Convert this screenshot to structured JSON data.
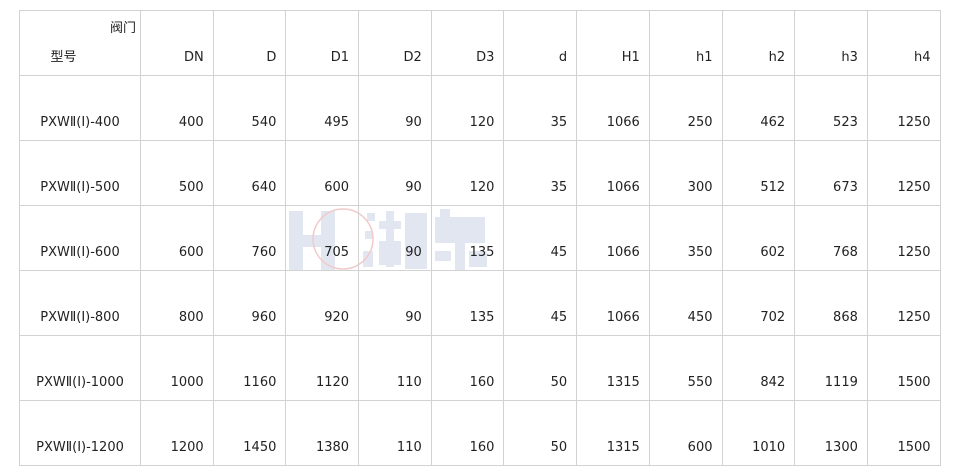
{
  "table": {
    "corner_top": "阀门",
    "corner_bottom": "型号",
    "columns": [
      "DN",
      "D",
      "D1",
      "D2",
      "D3",
      "d",
      "H1",
      "h1",
      "h2",
      "h3",
      "h4"
    ],
    "rows": [
      {
        "model": "PXWⅡ(Ⅰ)-400",
        "values": [
          "400",
          "540",
          "495",
          "90",
          "120",
          "35",
          "1066",
          "250",
          "462",
          "523",
          "1250"
        ]
      },
      {
        "model": "PXWⅡ(Ⅰ)-500",
        "values": [
          "500",
          "640",
          "600",
          "90",
          "120",
          "35",
          "1066",
          "300",
          "512",
          "673",
          "1250"
        ]
      },
      {
        "model": "PXWⅡ(Ⅰ)-600",
        "values": [
          "600",
          "760",
          "705",
          "90",
          "135",
          "45",
          "1066",
          "350",
          "602",
          "768",
          "1250"
        ]
      },
      {
        "model": "PXWⅡ(Ⅰ)-800",
        "values": [
          "800",
          "960",
          "920",
          "90",
          "135",
          "45",
          "1066",
          "450",
          "702",
          "868",
          "1250"
        ]
      },
      {
        "model": "PXWⅡ(Ⅰ)-1000",
        "values": [
          "1000",
          "1160",
          "1120",
          "110",
          "160",
          "50",
          "1315",
          "550",
          "842",
          "1119",
          "1500"
        ]
      },
      {
        "model": "PXWⅡ(Ⅰ)-1200",
        "values": [
          "1200",
          "1450",
          "1380",
          "110",
          "160",
          "50",
          "1315",
          "600",
          "1010",
          "1300",
          "1500"
        ]
      }
    ]
  },
  "watermark": {
    "text": "湖泉",
    "color": "#c9d3e6",
    "ring_color": "#e8a0a0"
  },
  "colors": {
    "border": "#d2d2d2",
    "text": "#222222"
  }
}
